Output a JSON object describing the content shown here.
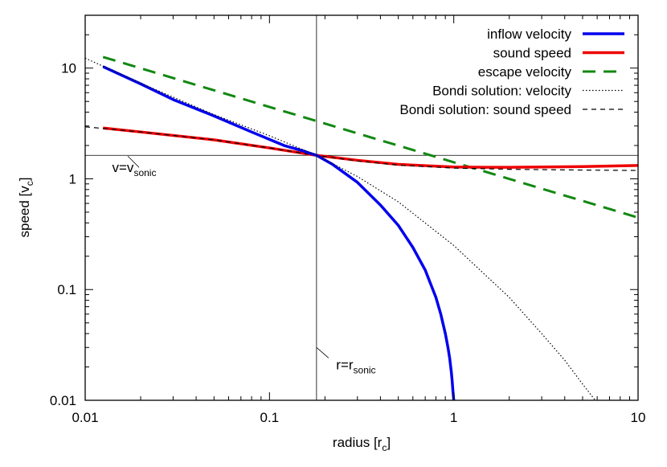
{
  "chart_data": {
    "type": "line",
    "xscale": "log",
    "yscale": "log",
    "xlim": [
      0.01,
      10
    ],
    "ylim": [
      0.01,
      30
    ],
    "xlabel": {
      "base": "radius [r",
      "sub": "c",
      "close": "]"
    },
    "ylabel": {
      "base": "speed [v",
      "sub": "c",
      "close": "]"
    },
    "xticks": [
      {
        "value": 0.01,
        "label": "0.01"
      },
      {
        "value": 0.1,
        "label": "0.1"
      },
      {
        "value": 1,
        "label": "1"
      },
      {
        "value": 10,
        "label": "10"
      }
    ],
    "yticks": [
      {
        "value": 0.01,
        "label": "0.01"
      },
      {
        "value": 0.1,
        "label": "0.1"
      },
      {
        "value": 1,
        "label": "1"
      },
      {
        "value": 10,
        "label": "10"
      }
    ],
    "grid": false,
    "legend_position": "top-right",
    "series": [
      {
        "name": "inflow velocity",
        "color": "#0000ee",
        "style": "solid-thick",
        "x": [
          0.0125,
          0.02,
          0.03,
          0.05,
          0.08,
          0.12,
          0.15,
          0.18,
          0.22,
          0.3,
          0.4,
          0.5,
          0.6,
          0.7,
          0.8,
          0.85,
          0.9,
          0.93,
          0.95,
          0.97,
          0.98,
          0.99,
          1.0
        ],
        "y": [
          10.3,
          7.2,
          5.2,
          3.7,
          2.65,
          2.0,
          1.8,
          1.63,
          1.35,
          0.93,
          0.58,
          0.38,
          0.24,
          0.15,
          0.085,
          0.06,
          0.04,
          0.03,
          0.024,
          0.018,
          0.015,
          0.012,
          0.01
        ]
      },
      {
        "name": "sound speed",
        "color": "#ee0000",
        "style": "solid-thick",
        "x": [
          0.0125,
          0.02,
          0.05,
          0.1,
          0.18,
          0.3,
          0.5,
          0.8,
          1.0,
          1.5,
          2,
          3,
          5,
          10
        ],
        "y": [
          2.88,
          2.65,
          2.25,
          1.9,
          1.63,
          1.47,
          1.35,
          1.3,
          1.28,
          1.27,
          1.27,
          1.28,
          1.29,
          1.32
        ]
      },
      {
        "name": "escape velocity",
        "color": "#118811",
        "style": "long-dash",
        "x": [
          0.0125,
          10
        ],
        "y": [
          12.6,
          0.447
        ]
      },
      {
        "name": "Bondi solution: velocity",
        "color": "#000000",
        "style": "dotted",
        "x": [
          0.01,
          0.02,
          0.05,
          0.1,
          0.18,
          0.3,
          0.5,
          1.0,
          2.0,
          3.0,
          4.0,
          5.0,
          6.0
        ],
        "y": [
          12.3,
          7.3,
          3.8,
          2.45,
          1.63,
          1.05,
          0.62,
          0.25,
          0.085,
          0.04,
          0.023,
          0.014,
          0.0095
        ]
      },
      {
        "name": "Bondi solution: sound speed",
        "color": "#000000",
        "style": "short-dash",
        "x": [
          0.01,
          0.02,
          0.05,
          0.1,
          0.18,
          0.3,
          0.5,
          1.0,
          2.0,
          5.0,
          10.0
        ],
        "y": [
          2.95,
          2.65,
          2.25,
          1.9,
          1.63,
          1.45,
          1.33,
          1.25,
          1.22,
          1.2,
          1.19
        ]
      }
    ],
    "reference_lines": [
      {
        "orientation": "horizontal",
        "value": 1.63
      },
      {
        "orientation": "vertical",
        "value": 0.18
      }
    ],
    "annotations": [
      {
        "base": "v=v",
        "sub": "sonic",
        "x": 0.014,
        "y": 1.15
      },
      {
        "base": "r=r",
        "sub": "sonic",
        "x": 0.23,
        "y": 0.019
      }
    ]
  }
}
